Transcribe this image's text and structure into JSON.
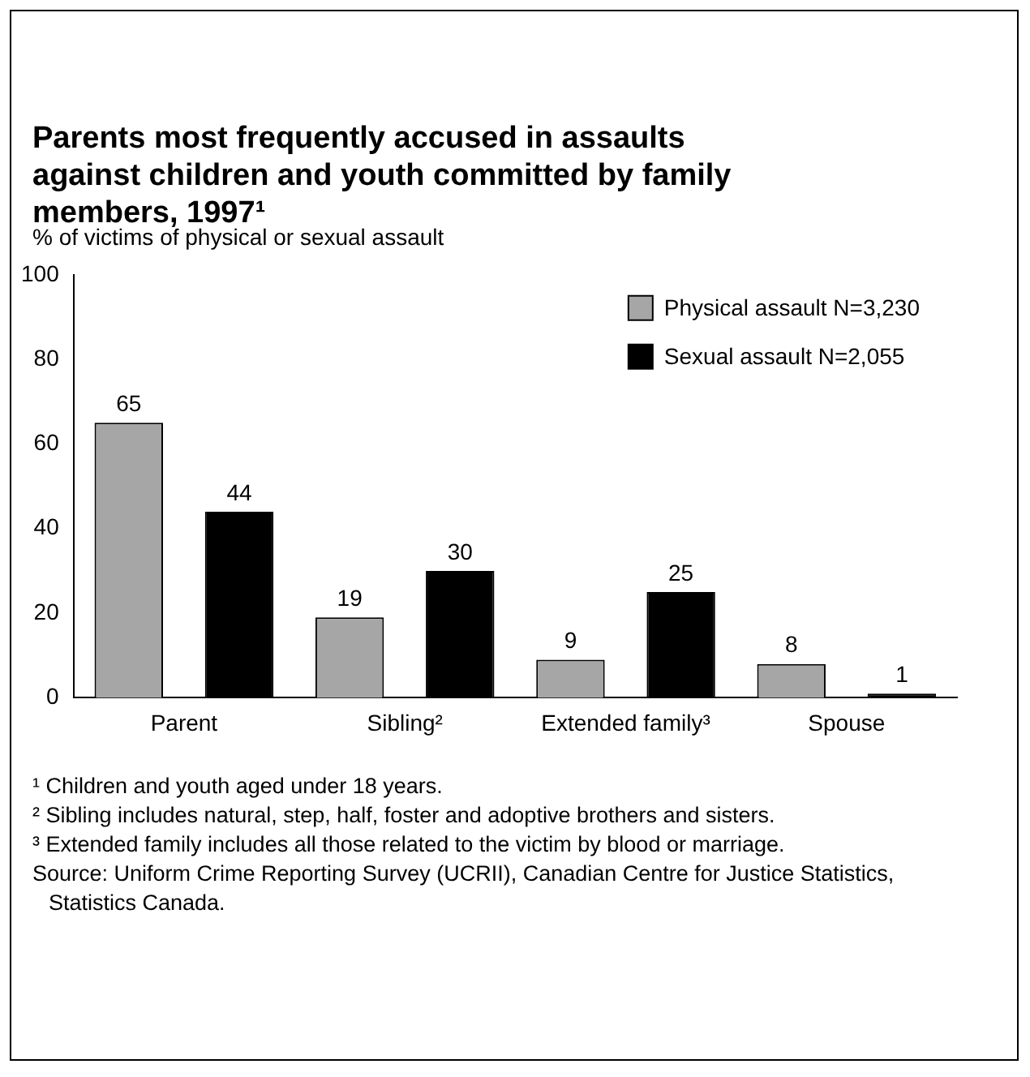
{
  "chart_data": {
    "type": "bar",
    "title": "Parents most frequently accused in assaults against children and youth committed by family members, 1997¹",
    "ylabel": "% of victims of physical or sexual assault",
    "categories": [
      "Parent",
      "Sibling²",
      "Extended family³",
      "Spouse"
    ],
    "series": [
      {
        "name": "Physical assault N=3,230",
        "color": "#a6a6a6",
        "values": [
          65,
          19,
          9,
          8
        ]
      },
      {
        "name": "Sexual assault N=2,055",
        "color": "#000000",
        "values": [
          44,
          30,
          25,
          1
        ]
      }
    ],
    "ylim": [
      0,
      100
    ],
    "yticks": [
      0,
      20,
      40,
      60,
      80,
      100
    ],
    "grid": false,
    "legend": "top right",
    "data_labels": true,
    "annotations": [
      "¹ Children and youth aged under 18 years.",
      "² Sibling includes natural, step, half, foster and adoptive brothers and sisters.",
      "³ Extended family includes all those related to the victim by blood or marriage.",
      "Source: Uniform Crime Reporting Survey (UCRII), Canadian Centre for Justice Statistics, Statistics Canada."
    ]
  }
}
